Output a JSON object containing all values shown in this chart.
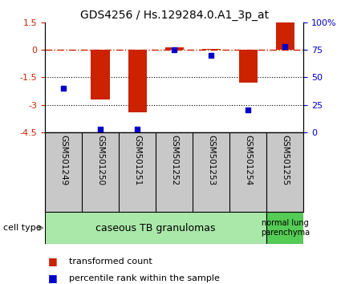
{
  "title": "GDS4256 / Hs.129284.0.A1_3p_at",
  "samples": [
    "GSM501249",
    "GSM501250",
    "GSM501251",
    "GSM501252",
    "GSM501253",
    "GSM501254",
    "GSM501255"
  ],
  "transformed_count": [
    0.0,
    -2.7,
    -3.4,
    0.15,
    0.05,
    -1.8,
    1.5
  ],
  "percentile_rank": [
    40,
    3,
    3,
    75,
    70,
    20,
    78
  ],
  "red_color": "#cc2200",
  "blue_color": "#0000cc",
  "ylim_left": [
    -4.5,
    1.5
  ],
  "ylim_right": [
    0,
    100
  ],
  "yticks_left": [
    1.5,
    0,
    -1.5,
    -3,
    -4.5
  ],
  "yticks_right": [
    100,
    75,
    50,
    25,
    0
  ],
  "ytick_labels_right": [
    "100%",
    "75",
    "50",
    "25",
    "0"
  ],
  "dotted_lines": [
    -1.5,
    -3
  ],
  "group1_label": "caseous TB granulomas",
  "group2_label": "normal lung\nparenchyma",
  "group1_color": "#aae8aa",
  "group2_color": "#55cc55",
  "cell_type_label": "cell type",
  "legend_red": "transformed count",
  "legend_blue": "percentile rank within the sample",
  "bar_width": 0.5,
  "blue_marker_size": 5,
  "label_bg_color": "#c8c8c8",
  "title_fontsize": 10
}
